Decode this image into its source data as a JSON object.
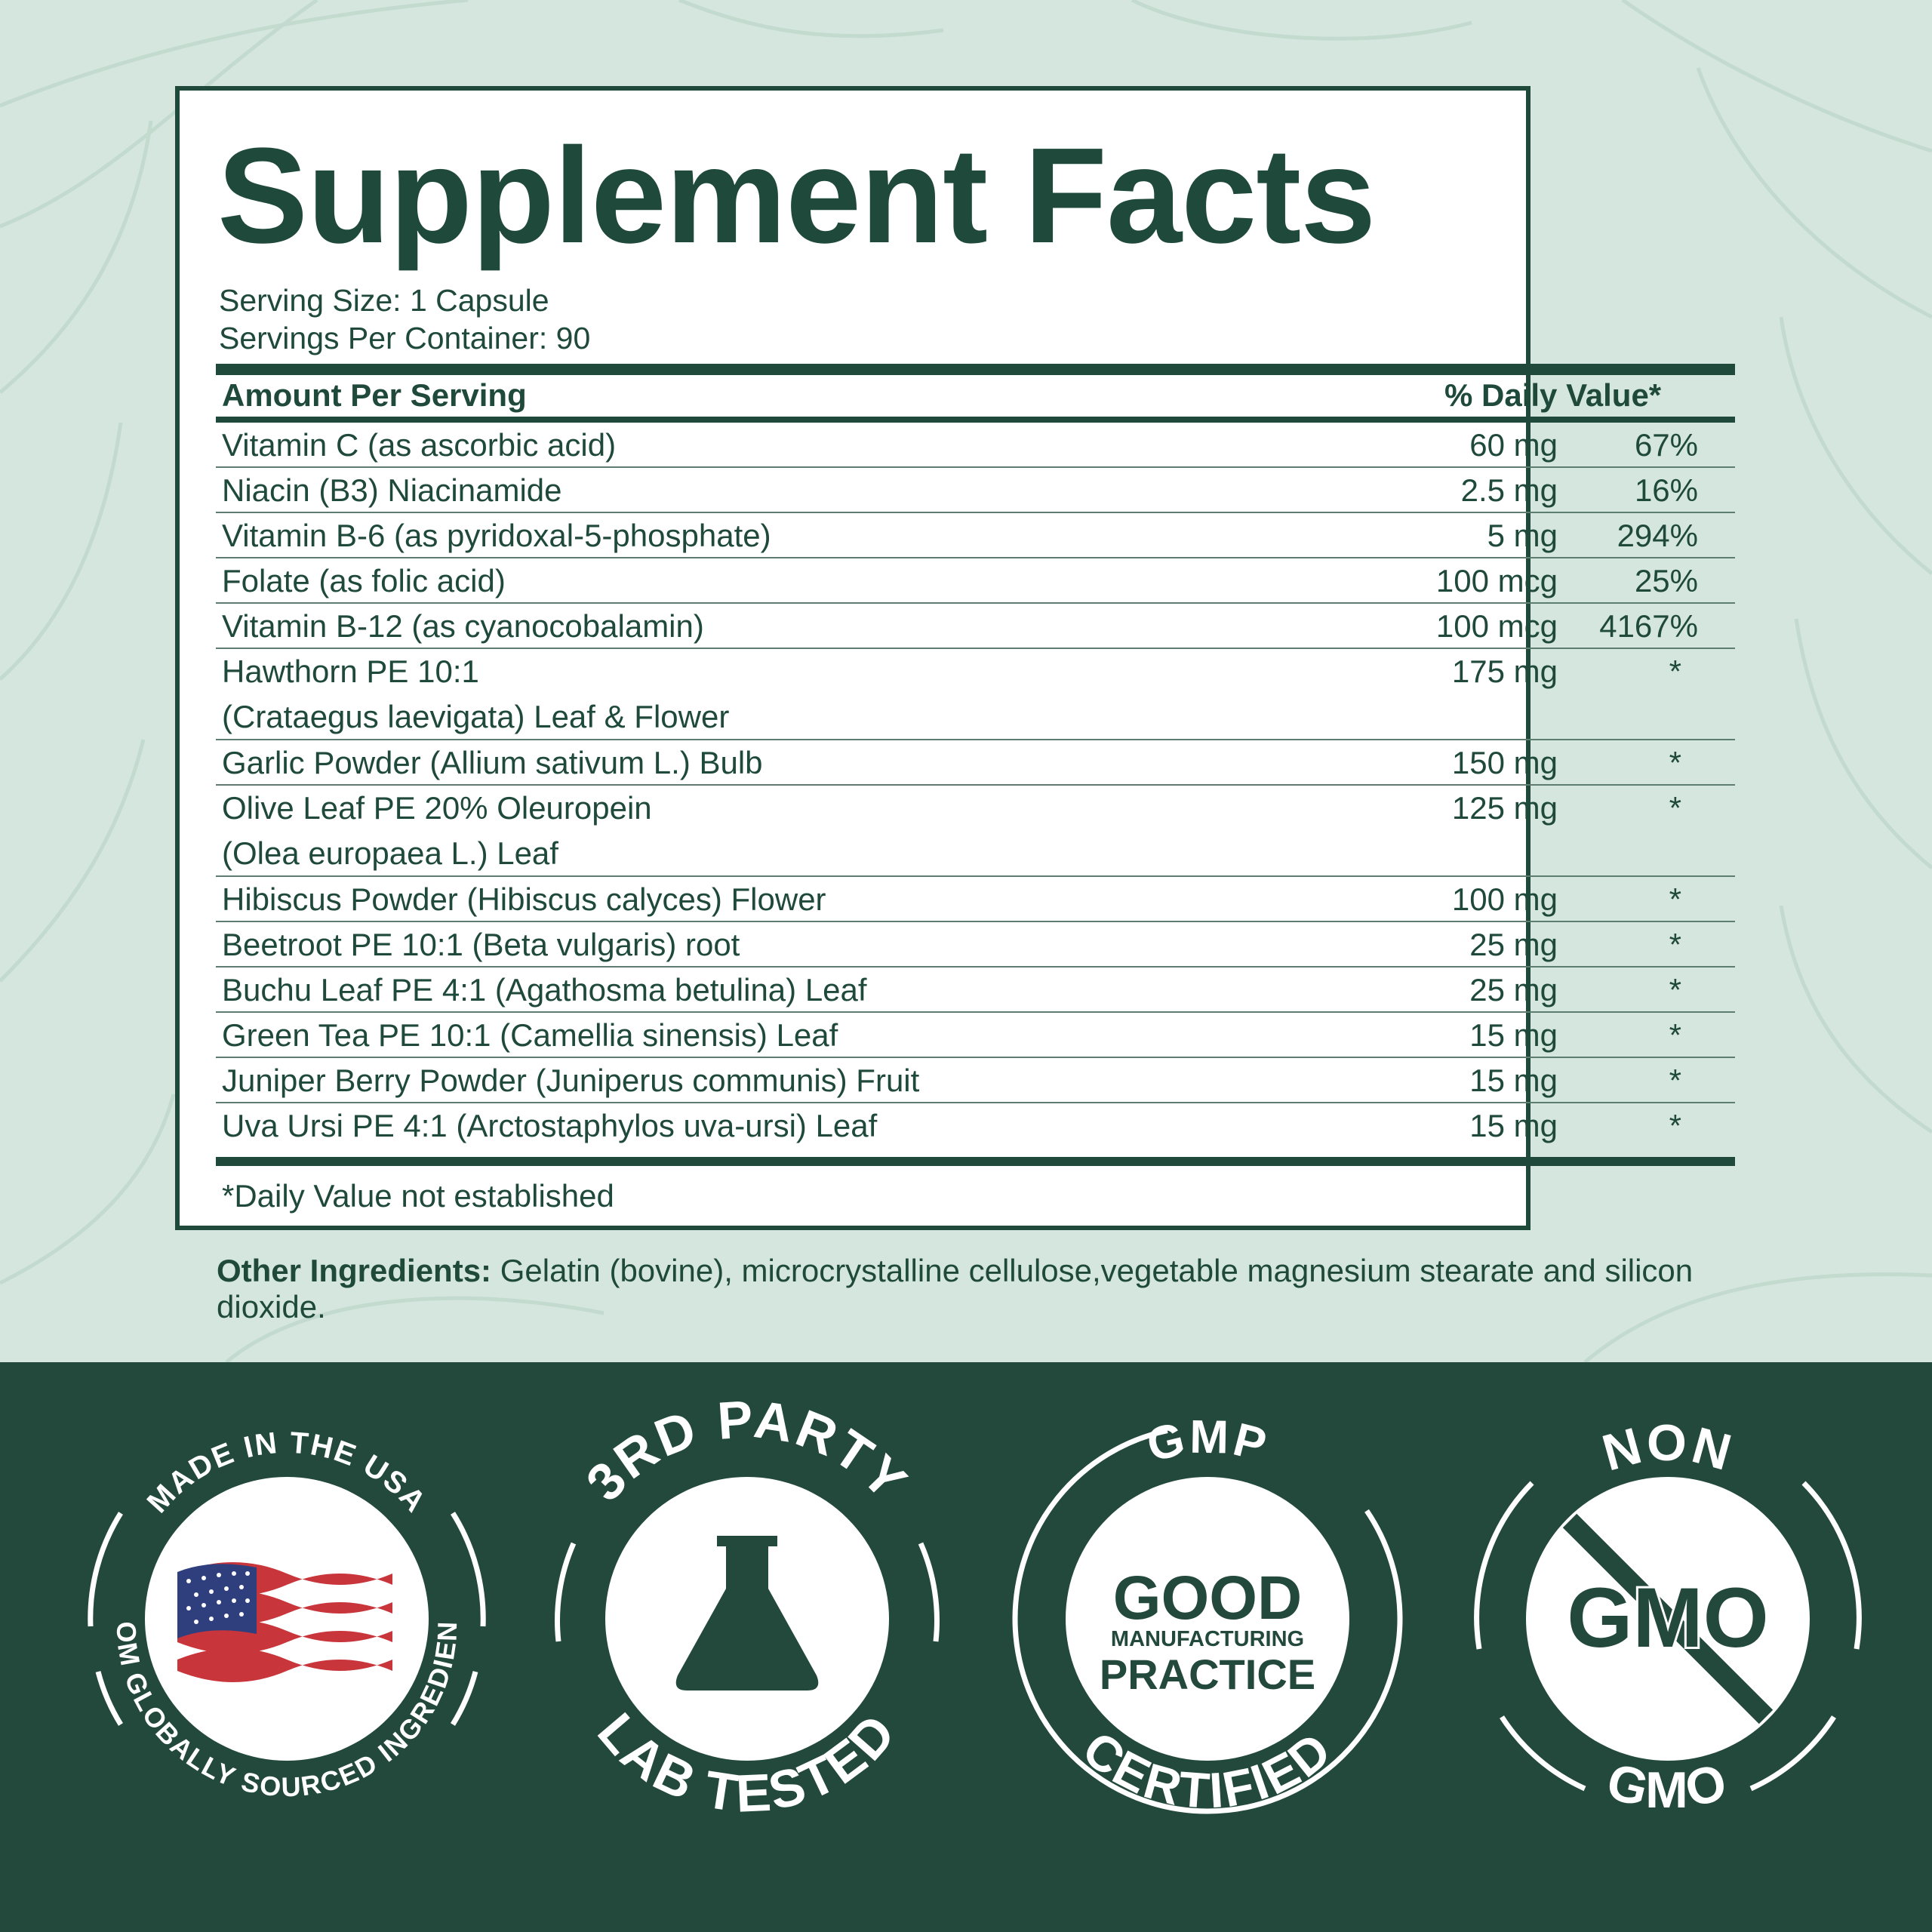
{
  "title": "Supplement Facts",
  "serving_size": "Serving Size: 1 Capsule",
  "servings_per_container": "Servings Per Container: 90",
  "table": {
    "header_left": "Amount Per Serving",
    "header_right": "% Daily Value*",
    "rows": [
      {
        "name": "Vitamin C (as ascorbic acid)",
        "amount": "60 mg",
        "dv": "67%"
      },
      {
        "name": "Niacin (B3) Niacinamide",
        "amount": "2.5 mg",
        "dv": "16%"
      },
      {
        "name": "Vitamin B-6 (as pyridoxal-5-phosphate)",
        "amount": "5 mg",
        "dv": "294%"
      },
      {
        "name": "Folate (as folic acid)",
        "amount": "100 mcg",
        "dv": "25%"
      },
      {
        "name": "Vitamin B-12 (as cyanocobalamin)",
        "amount": "100 mcg",
        "dv": "4167%"
      },
      {
        "name": "Hawthorn PE 10:1\n  (Crataegus laevigata) Leaf & Flower",
        "amount": "175 mg",
        "dv": "*"
      },
      {
        "name": "Garlic Powder (Allium sativum L.) Bulb",
        "amount": "150 mg",
        "dv": "*"
      },
      {
        "name": "Olive Leaf PE 20% Oleuropein\n  (Olea europaea L.) Leaf",
        "amount": "125 mg",
        "dv": "*"
      },
      {
        "name": "Hibiscus Powder (Hibiscus calyces) Flower",
        "amount": "100 mg",
        "dv": "*"
      },
      {
        "name": "Beetroot PE 10:1 (Beta vulgaris) root",
        "amount": "25 mg",
        "dv": "*"
      },
      {
        "name": "Buchu Leaf PE 4:1 (Agathosma betulina) Leaf",
        "amount": "25 mg",
        "dv": "*"
      },
      {
        "name": "Green Tea PE 10:1 (Camellia sinensis) Leaf",
        "amount": "15 mg",
        "dv": "*"
      },
      {
        "name": "Juniper Berry Powder (Juniperus communis) Fruit",
        "amount": "15 mg",
        "dv": "*"
      },
      {
        "name": "Uva Ursi PE 4:1 (Arctostaphylos uva-ursi) Leaf",
        "amount": "15 mg",
        "dv": "*"
      }
    ]
  },
  "footnote": "*Daily Value not established",
  "other_ingredients": {
    "label": "Other Ingredients:",
    "text": " Gelatin (bovine), microcrystalline cellulose,vegetable magnesium stearate and silicon dioxide."
  },
  "badges": {
    "usa": {
      "top": "MADE IN THE USA",
      "bottom": "FROM GLOBALLY SOURCED INGREDIENTS",
      "icon": "us-flag-icon"
    },
    "lab": {
      "top": "3RD PARTY",
      "bottom": "LAB TESTED",
      "icon": "flask-icon"
    },
    "gmp": {
      "top": "GMP",
      "line1": "GOOD",
      "line2": "MANUFACTURING",
      "line3": "PRACTICE",
      "bottom": "CERTIFIED"
    },
    "nongmo": {
      "top": "NON",
      "center": "GMO",
      "bottom": "GMO",
      "icon": "prohibited-icon"
    }
  },
  "colors": {
    "brand_green": "#1f4a3b",
    "background": "#d5e6de",
    "band": "#22493b"
  }
}
